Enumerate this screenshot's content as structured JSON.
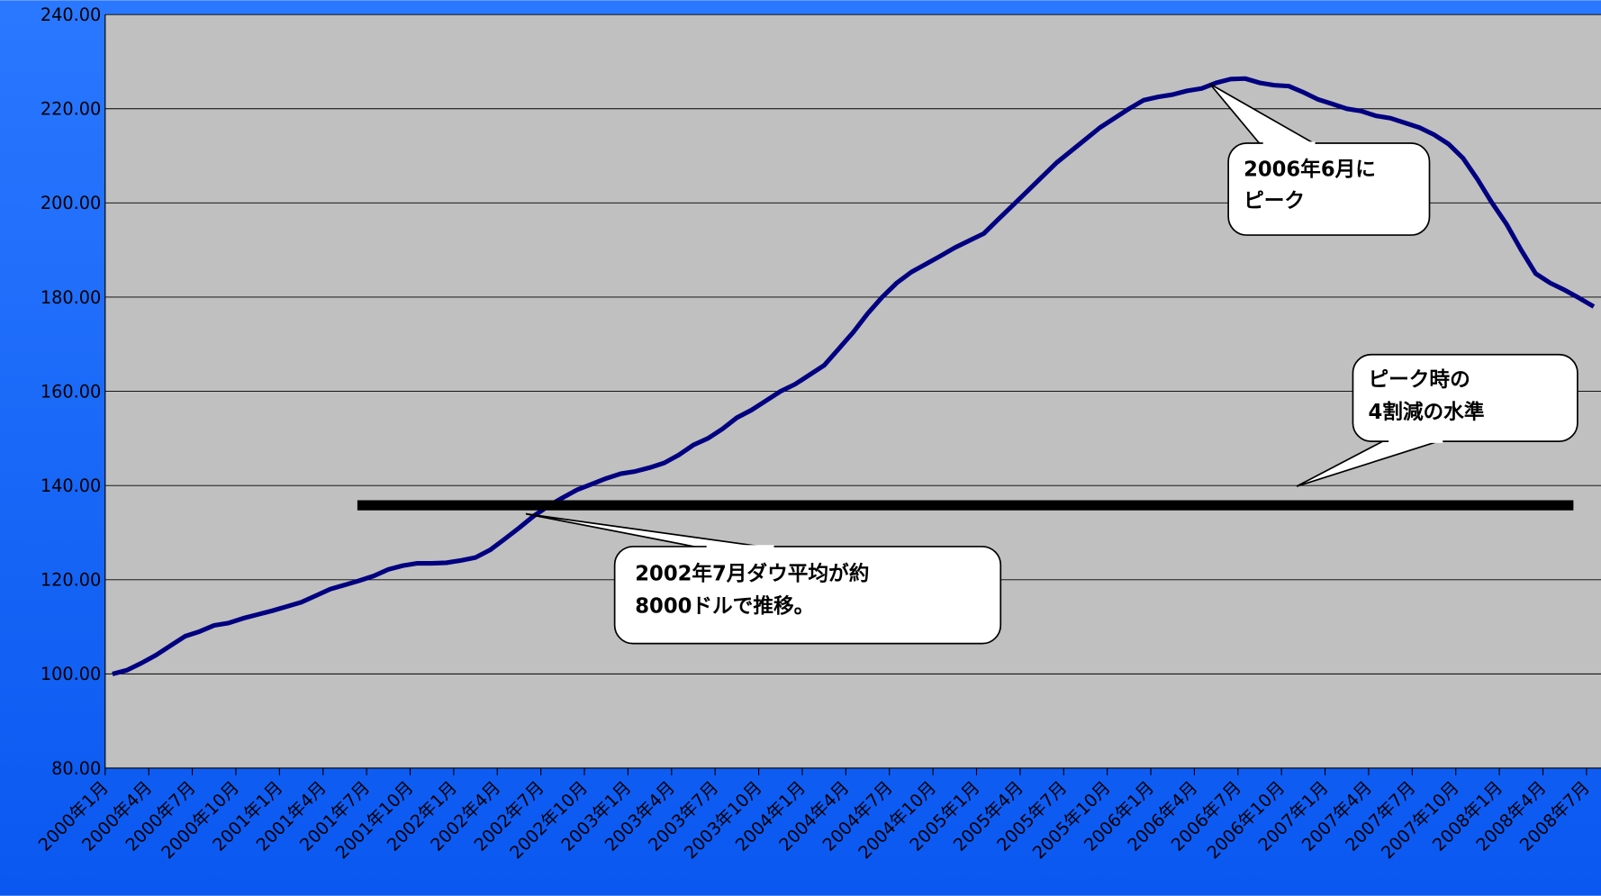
{
  "chart_data": {
    "type": "line",
    "categories": [
      "2000年1月",
      null,
      null,
      "2000年4月",
      null,
      null,
      "2000年7月",
      null,
      null,
      "2000年10月",
      null,
      null,
      "2001年1月",
      null,
      null,
      "2001年4月",
      null,
      null,
      "2001年7月",
      null,
      null,
      "2001年10月",
      null,
      null,
      "2002年1月",
      null,
      null,
      "2002年4月",
      null,
      null,
      "2002年7月",
      null,
      null,
      "2002年10月",
      null,
      null,
      "2003年1月",
      null,
      null,
      "2003年4月",
      null,
      null,
      "2003年7月",
      null,
      null,
      "2003年10月",
      null,
      null,
      "2004年1月",
      null,
      null,
      "2004年4月",
      null,
      null,
      "2004年7月",
      null,
      null,
      "2004年10月",
      null,
      null,
      "2005年1月",
      null,
      null,
      "2005年4月",
      null,
      null,
      "2005年7月",
      null,
      null,
      "2005年10月",
      null,
      null,
      "2006年1月",
      null,
      null,
      "2006年4月",
      null,
      null,
      "2006年7月",
      null,
      null,
      "2006年10月",
      null,
      null,
      "2007年1月",
      null,
      null,
      "2007年4月",
      null,
      null,
      "2007年7月",
      null,
      null,
      "2007年10月",
      null,
      null,
      "2008年1月",
      null,
      null,
      "2008年4月",
      null,
      null,
      "2008年7月"
    ],
    "series": [
      {
        "color": "#000080",
        "values": [
          100,
          100.8,
          102.3,
          104,
          106,
          108,
          109,
          110.3,
          110.8,
          111.8,
          112.6,
          113.4,
          114.3,
          115.2,
          116.6,
          118,
          118.9,
          119.8,
          120.8,
          122.2,
          123,
          123.5,
          123.5,
          123.6,
          124.1,
          124.7,
          126.3,
          128.6,
          131,
          133.5,
          135.6,
          137.4,
          139.1,
          140.3,
          141.5,
          142.5,
          143,
          143.8,
          144.8,
          146.5,
          148.6,
          150,
          152,
          154.4,
          156,
          158,
          160,
          161.5,
          163.5,
          165.5,
          169,
          172.5,
          176.5,
          180,
          183,
          185.3,
          187,
          188.7,
          190.5,
          192,
          193.5,
          196.5,
          199.5,
          202.5,
          205.5,
          208.5,
          211,
          213.5,
          216,
          218,
          220,
          221.8,
          222.5,
          223,
          223.8,
          224.3,
          225.5,
          226.3,
          226.4,
          225.5,
          225,
          224.8,
          223.5,
          222,
          221,
          220,
          219.5,
          218.5,
          218,
          217,
          216,
          214.5,
          212.5,
          209.5,
          205,
          200,
          195.5,
          190,
          185,
          183,
          181.5,
          179.8,
          178
        ]
      }
    ],
    "reference_line": {
      "value": 135.8,
      "color": "#000000"
    },
    "annotations": [
      {
        "lines": [
          "2006年6月に",
          "ピーク"
        ]
      },
      {
        "lines": [
          "ピーク時の",
          "4割減の水準"
        ]
      },
      {
        "lines": [
          "2002年7月ダウ平均が約",
          "8000ドルで推移。"
        ]
      }
    ],
    "ylim": [
      80,
      240
    ],
    "yticks": [
      {
        "value": 80,
        "label": "80.00"
      },
      {
        "value": 100,
        "label": "100.00"
      },
      {
        "value": 120,
        "label": "120.00"
      },
      {
        "value": 140,
        "label": "140.00"
      },
      {
        "value": 160,
        "label": "160.00"
      },
      {
        "value": 180,
        "label": "180.00"
      },
      {
        "value": 200,
        "label": "200.00"
      },
      {
        "value": 220,
        "label": "220.00"
      },
      {
        "value": 240,
        "label": "240.00"
      }
    ],
    "grid": true
  }
}
